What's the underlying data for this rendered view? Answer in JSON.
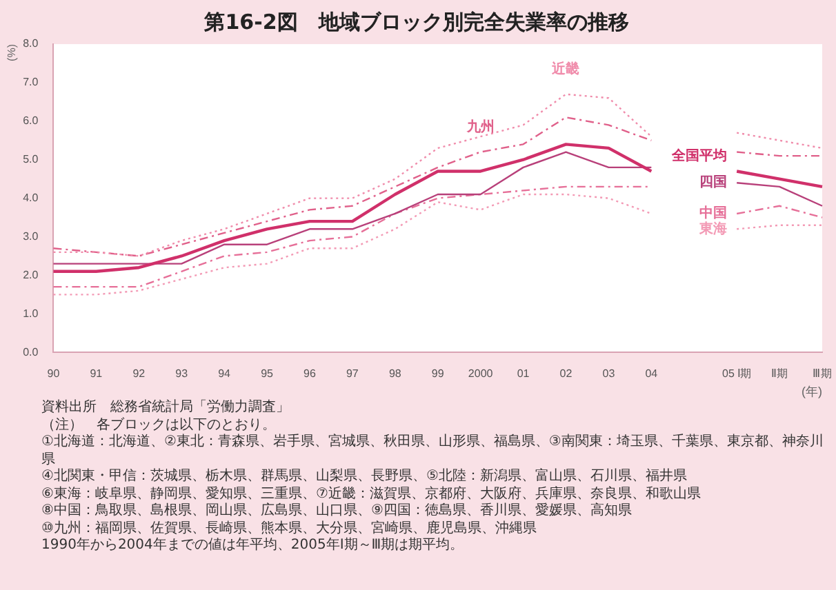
{
  "chart_data": {
    "type": "line",
    "title": "第16-2図　地域ブロック別完全失業率の推移",
    "ylabel": "(%)",
    "xlabel": "(年)",
    "categories": [
      "90",
      "91",
      "92",
      "93",
      "94",
      "95",
      "96",
      "97",
      "98",
      "99",
      "2000",
      "01",
      "02",
      "03",
      "04",
      null,
      "05 Ⅰ期",
      "Ⅱ期",
      "Ⅲ期"
    ],
    "ylim": [
      0,
      8
    ],
    "yticks": [
      {
        "value": 0,
        "label": "0.0"
      },
      {
        "value": 1,
        "label": "1.0"
      },
      {
        "value": 2,
        "label": "2.0"
      },
      {
        "value": 3,
        "label": "3.0"
      },
      {
        "value": 4,
        "label": "4.0"
      },
      {
        "value": 5,
        "label": "5.0"
      },
      {
        "value": 6,
        "label": "6.0"
      },
      {
        "value": 7,
        "label": "7.0"
      },
      {
        "value": 8,
        "label": "8.0"
      }
    ],
    "grid": false,
    "legend": false,
    "marker": "none",
    "series": [
      {
        "name": "近畿",
        "color": "#f08cab",
        "line_style": "dotted",
        "values": [
          2.6,
          2.6,
          2.5,
          2.9,
          3.2,
          3.6,
          4.0,
          4.0,
          4.5,
          5.3,
          5.6,
          5.9,
          6.7,
          6.6,
          5.6,
          null,
          5.7,
          5.5,
          5.3
        ]
      },
      {
        "name": "九州",
        "color": "#e0608a",
        "line_style": "dashed",
        "values": [
          2.7,
          2.6,
          2.5,
          2.8,
          3.1,
          3.4,
          3.7,
          3.8,
          4.3,
          4.8,
          5.2,
          5.4,
          6.1,
          5.9,
          5.5,
          null,
          5.2,
          5.1,
          5.1
        ]
      },
      {
        "name": "全国平均",
        "color": "#d0306a",
        "line_style": "solid",
        "values": [
          2.1,
          2.1,
          2.2,
          2.5,
          2.9,
          3.2,
          3.4,
          3.4,
          4.1,
          4.7,
          4.7,
          5.0,
          5.4,
          5.3,
          4.7,
          null,
          4.7,
          4.5,
          4.3
        ]
      },
      {
        "name": "四国",
        "color": "#b8407a",
        "line_style": "solid",
        "values": [
          2.3,
          2.3,
          2.3,
          2.3,
          2.8,
          2.8,
          3.2,
          3.2,
          3.6,
          4.1,
          4.1,
          4.8,
          5.2,
          4.8,
          4.8,
          null,
          4.4,
          4.3,
          3.8
        ]
      },
      {
        "name": "中国",
        "color": "#e66f98",
        "line_style": "dashed",
        "values": [
          1.7,
          1.7,
          1.7,
          2.1,
          2.5,
          2.6,
          2.9,
          3.0,
          3.6,
          4.0,
          4.1,
          4.2,
          4.3,
          4.3,
          4.3,
          null,
          3.6,
          3.8,
          3.5
        ]
      },
      {
        "name": "東海",
        "color": "#f39ab5",
        "line_style": "dotted",
        "values": [
          1.5,
          1.5,
          1.6,
          1.9,
          2.2,
          2.3,
          2.7,
          2.7,
          3.2,
          3.9,
          3.7,
          4.1,
          4.1,
          4.0,
          3.6,
          null,
          3.2,
          3.3,
          3.3
        ]
      }
    ],
    "annotations": [
      "資料出所　総務省統計局「労働力調査」",
      "（注）　各ブロックは以下のとおり。",
      "①北海道：北海道、②東北：青森県、岩手県、宮城県、秋田県、山形県、福島県、③南関東：埼玉県、千葉県、東京都、神奈川県",
      "④北関東・甲信：茨城県、栃木県、群馬県、山梨県、長野県、⑤北陸：新潟県、富山県、石川県、福井県",
      "⑥東海：岐阜県、静岡県、愛知県、三重県、⑦近畿：滋賀県、京都府、大阪府、兵庫県、奈良県、和歌山県",
      "⑧中国：鳥取県、島根県、岡山県、広島県、山口県、⑨四国：徳島県、香川県、愛媛県、高知県",
      "⑩九州：福岡県、佐賀県、長崎県、熊本県、大分県、宮崎県、鹿児島県、沖縄県",
      "1990年から2004年までの値は年平均、2005年Ⅰ期～Ⅲ期は期平均。"
    ]
  }
}
